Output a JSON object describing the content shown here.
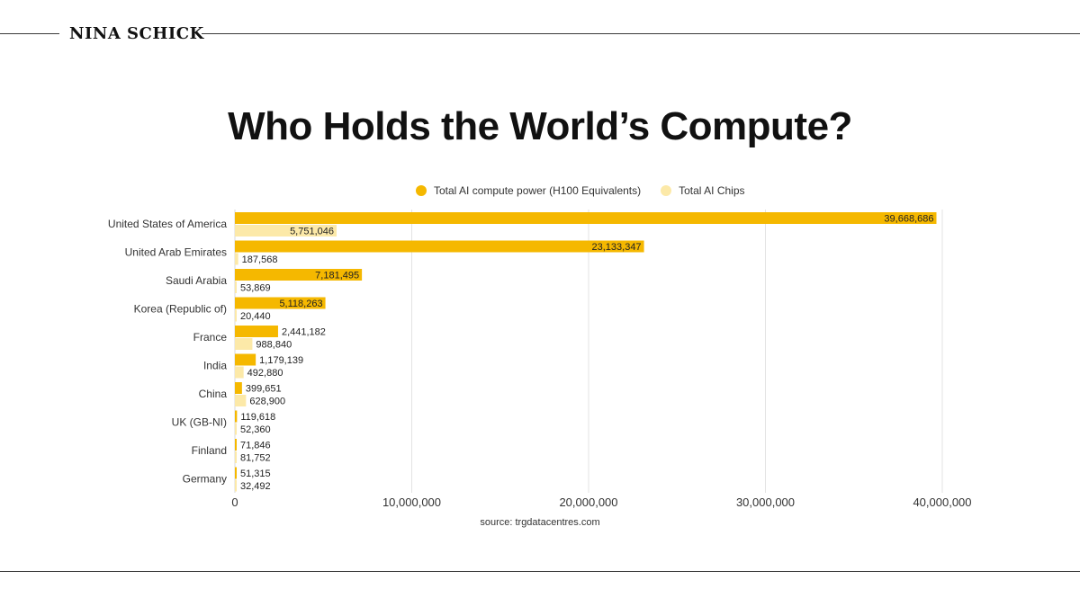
{
  "header": {
    "brand": "NINA SCHICK"
  },
  "title": "Who Holds the World’s Compute?",
  "source": "source: trgdatacentres.com",
  "colors": {
    "compute": "#F5B800",
    "chips": "#FCE9A8",
    "grid": "#E3E3E3"
  },
  "chart_data": {
    "type": "bar",
    "orientation": "horizontal",
    "title": "Who Holds the World’s Compute?",
    "categories": [
      "United States of America",
      "United Arab Emirates",
      "Saudi Arabia",
      "Korea (Republic of)",
      "France",
      "India",
      "China",
      "UK (GB-NI)",
      "Finland",
      "Germany"
    ],
    "series": [
      {
        "name": "Total AI compute power (H100 Equivalents)",
        "values": [
          39668686,
          23133347,
          7181495,
          5118263,
          2441182,
          1179139,
          399651,
          119618,
          71846,
          51315
        ]
      },
      {
        "name": "Total AI Chips",
        "values": [
          5751046,
          187568,
          53869,
          20440,
          988840,
          492880,
          628900,
          52360,
          81752,
          32492
        ]
      }
    ],
    "data_labels": [
      [
        "39,668,686",
        "23,133,347",
        "7,181,495",
        "5,118,263",
        "2,441,182",
        "1,179,139",
        "399,651",
        "119,618",
        "71,846",
        "51,315"
      ],
      [
        "5,751,046",
        "187,568",
        "53,869",
        "20,440",
        "988,840",
        "492,880",
        "628,900",
        "52,360",
        "81,752",
        "32,492"
      ]
    ],
    "x_ticks": [
      0,
      10000000,
      20000000,
      30000000,
      40000000
    ],
    "x_tick_labels": [
      "0",
      "10,000,000",
      "20,000,000",
      "30,000,000",
      "40,000,000"
    ],
    "xlim": [
      0,
      40000000
    ],
    "legend_position": "top",
    "grid": true
  }
}
